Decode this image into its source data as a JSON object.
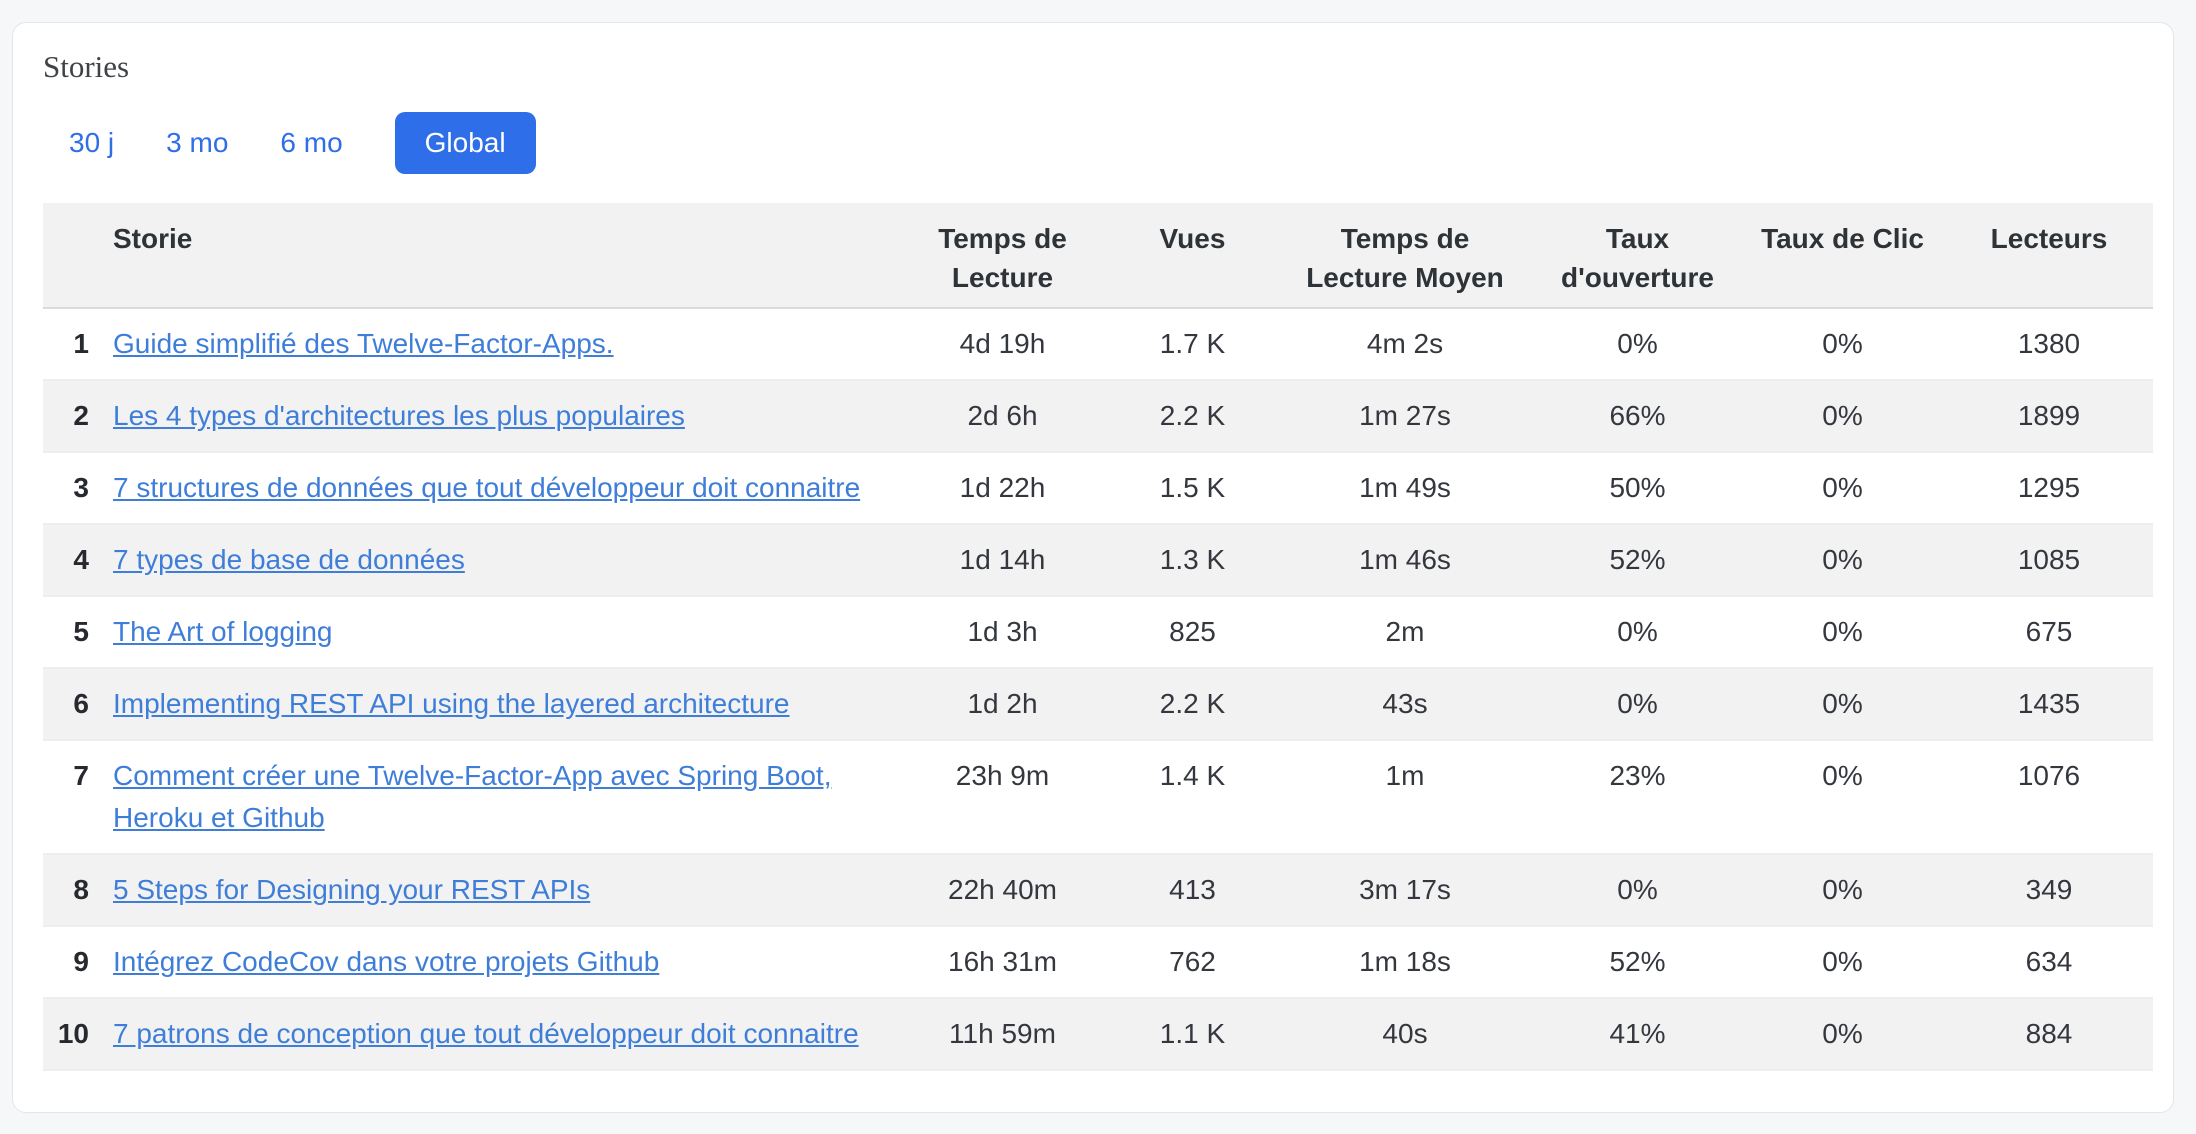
{
  "colors": {
    "accent_blue": "#2e6ee8",
    "link_blue": "#3e7ed9",
    "stripe_gray": "#f2f2f3",
    "card_background": "#ffffff",
    "page_background": "#f6f7f9"
  },
  "card": {
    "title": "Stories"
  },
  "tabs": [
    {
      "id": "30j",
      "label": "30 j",
      "active": false
    },
    {
      "id": "3mo",
      "label": "3 mo",
      "active": false
    },
    {
      "id": "6mo",
      "label": "6 mo",
      "active": false
    },
    {
      "id": "global",
      "label": "Global",
      "active": true
    }
  ],
  "table": {
    "columns": [
      {
        "key": "storie",
        "label": "Storie"
      },
      {
        "key": "tdl",
        "label": "Temps de Lecture"
      },
      {
        "key": "vues",
        "label": "Vues"
      },
      {
        "key": "tdlm",
        "label": "Temps de Lecture Moyen"
      },
      {
        "key": "ouv",
        "label": "Taux d'ouverture"
      },
      {
        "key": "clic",
        "label": "Taux de Clic"
      },
      {
        "key": "lect",
        "label": "Lecteurs"
      }
    ],
    "rows": [
      {
        "rank": "1",
        "title": "Guide simplifié des Twelve-Factor-Apps.",
        "reading_time": "4d 19h",
        "views": "1.7 K",
        "avg_reading_time": "4m 2s",
        "open_rate": "0%",
        "click_rate": "0%",
        "readers": "1380"
      },
      {
        "rank": "2",
        "title": "Les 4 types d'architectures les plus populaires",
        "reading_time": "2d 6h",
        "views": "2.2 K",
        "avg_reading_time": "1m 27s",
        "open_rate": "66%",
        "click_rate": "0%",
        "readers": "1899"
      },
      {
        "rank": "3",
        "title": "7 structures de données que tout développeur doit connaitre",
        "reading_time": "1d 22h",
        "views": "1.5 K",
        "avg_reading_time": "1m 49s",
        "open_rate": "50%",
        "click_rate": "0%",
        "readers": "1295"
      },
      {
        "rank": "4",
        "title": "7 types de base de données",
        "reading_time": "1d 14h",
        "views": "1.3 K",
        "avg_reading_time": "1m 46s",
        "open_rate": "52%",
        "click_rate": "0%",
        "readers": "1085"
      },
      {
        "rank": "5",
        "title": "The Art of logging",
        "reading_time": "1d 3h",
        "views": "825",
        "avg_reading_time": "2m",
        "open_rate": "0%",
        "click_rate": "0%",
        "readers": "675"
      },
      {
        "rank": "6",
        "title": "Implementing REST API using the layered architecture",
        "reading_time": "1d 2h",
        "views": "2.2 K",
        "avg_reading_time": "43s",
        "open_rate": "0%",
        "click_rate": "0%",
        "readers": "1435"
      },
      {
        "rank": "7",
        "title": "Comment créer une Twelve-Factor-App avec Spring Boot, Heroku et Github",
        "reading_time": "23h 9m",
        "views": "1.4 K",
        "avg_reading_time": "1m",
        "open_rate": "23%",
        "click_rate": "0%",
        "readers": "1076"
      },
      {
        "rank": "8",
        "title": "5 Steps for Designing your REST APIs",
        "reading_time": "22h 40m",
        "views": "413",
        "avg_reading_time": "3m 17s",
        "open_rate": "0%",
        "click_rate": "0%",
        "readers": "349"
      },
      {
        "rank": "9",
        "title": "Intégrez CodeCov dans votre projets Github",
        "reading_time": "16h 31m",
        "views": "762",
        "avg_reading_time": "1m 18s",
        "open_rate": "52%",
        "click_rate": "0%",
        "readers": "634"
      },
      {
        "rank": "10",
        "title": "7 patrons de conception que tout développeur doit connaitre",
        "reading_time": "11h 59m",
        "views": "1.1 K",
        "avg_reading_time": "40s",
        "open_rate": "41%",
        "click_rate": "0%",
        "readers": "884"
      }
    ]
  }
}
